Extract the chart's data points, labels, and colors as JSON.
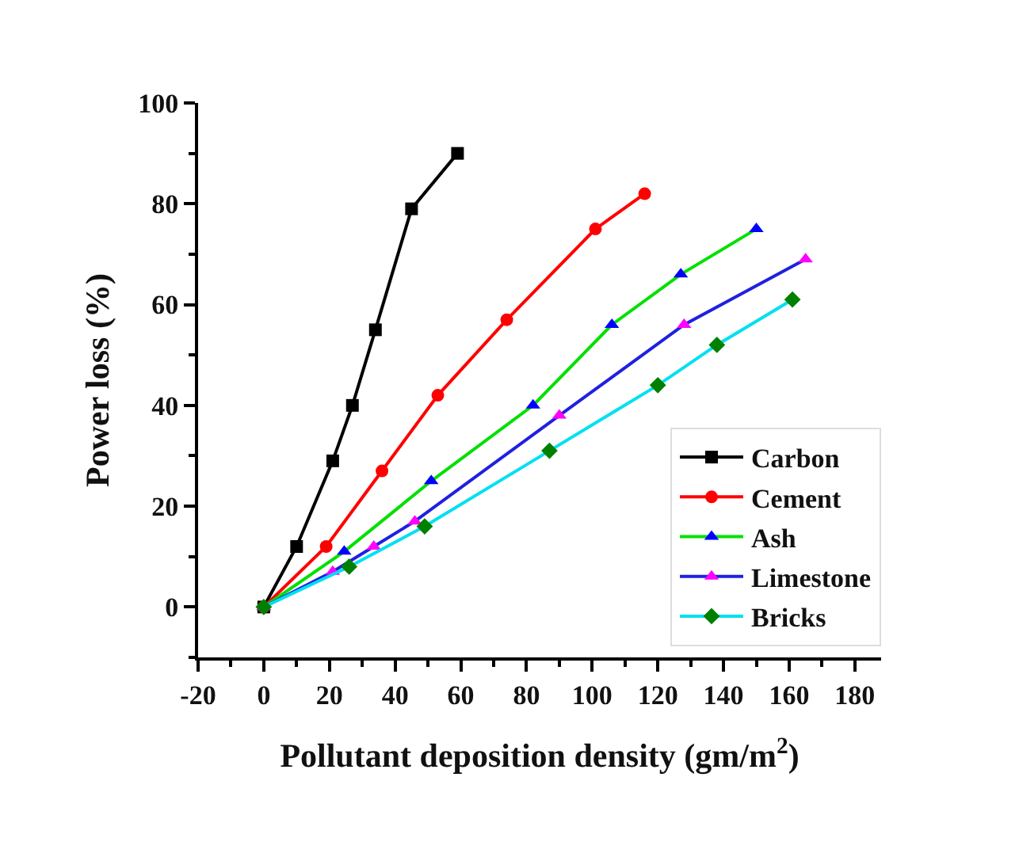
{
  "chart_data": {
    "type": "line",
    "xlabel": "Pollutant deposition density (gm/m$^{2}$)",
    "ylabel": "Power loss (%)",
    "xlim": [
      -20,
      188
    ],
    "xticks": [
      -20,
      0,
      20,
      40,
      60,
      80,
      100,
      120,
      140,
      160,
      180
    ],
    "ylim": [
      -10,
      100
    ],
    "yticks": [
      0,
      20,
      40,
      60,
      80,
      100
    ],
    "legend": "bottom right",
    "line_style": "solid",
    "series": [
      {
        "name": "Carbon",
        "color": "#000000",
        "colors": [
          "#000000",
          "#000000",
          "#000000",
          "#000000",
          "#000000",
          "#000000",
          "#000000"
        ],
        "marker": "square",
        "x": [
          0,
          10,
          21,
          27,
          34,
          45,
          59
        ],
        "values": [
          0,
          12,
          29,
          40,
          55,
          79,
          90
        ]
      },
      {
        "name": "Cement",
        "color": "#ff0000",
        "colors": [
          "#ff0000",
          "#ff0000",
          "#ff0000",
          "#ff0000",
          "#ff0000",
          "#ff0000",
          "#ff0000"
        ],
        "marker": "circle",
        "x": [
          0,
          19,
          36,
          53,
          74,
          101,
          116
        ],
        "values": [
          0,
          12,
          27,
          42,
          57,
          75,
          82
        ]
      },
      {
        "name": "Ash",
        "color": "#00e000",
        "colors": [
          "#0000ff",
          "#0000ff",
          "#0000ff",
          "#0000ff",
          "#0000ff",
          "#0000ff",
          "#0000ff"
        ],
        "marker": "triangle",
        "x": [
          0,
          24.5,
          51,
          82,
          106,
          127,
          150
        ],
        "values": [
          0,
          11,
          25,
          40,
          56,
          66,
          75
        ]
      },
      {
        "name": "Limestone",
        "color": "#2020e0",
        "colors": [
          "#ff00ff",
          "#ff00ff",
          "#ff00ff",
          "#ff00ff",
          "#ff00ff",
          "#ff00ff",
          "#ff00ff"
        ],
        "marker": "triangle",
        "x": [
          0,
          21,
          33.5,
          46,
          90,
          128,
          165
        ],
        "values": [
          0,
          7,
          12,
          17,
          38,
          56,
          69
        ]
      },
      {
        "name": "Bricks",
        "color": "#00e0f0",
        "colors": [
          "#008000",
          "#008000",
          "#008000",
          "#008000",
          "#008000",
          "#008000",
          "#008000"
        ],
        "marker": "diamond",
        "x": [
          0,
          26,
          49,
          87,
          120,
          138,
          161
        ],
        "values": [
          0,
          8,
          16,
          31,
          44,
          52,
          61
        ]
      }
    ]
  }
}
